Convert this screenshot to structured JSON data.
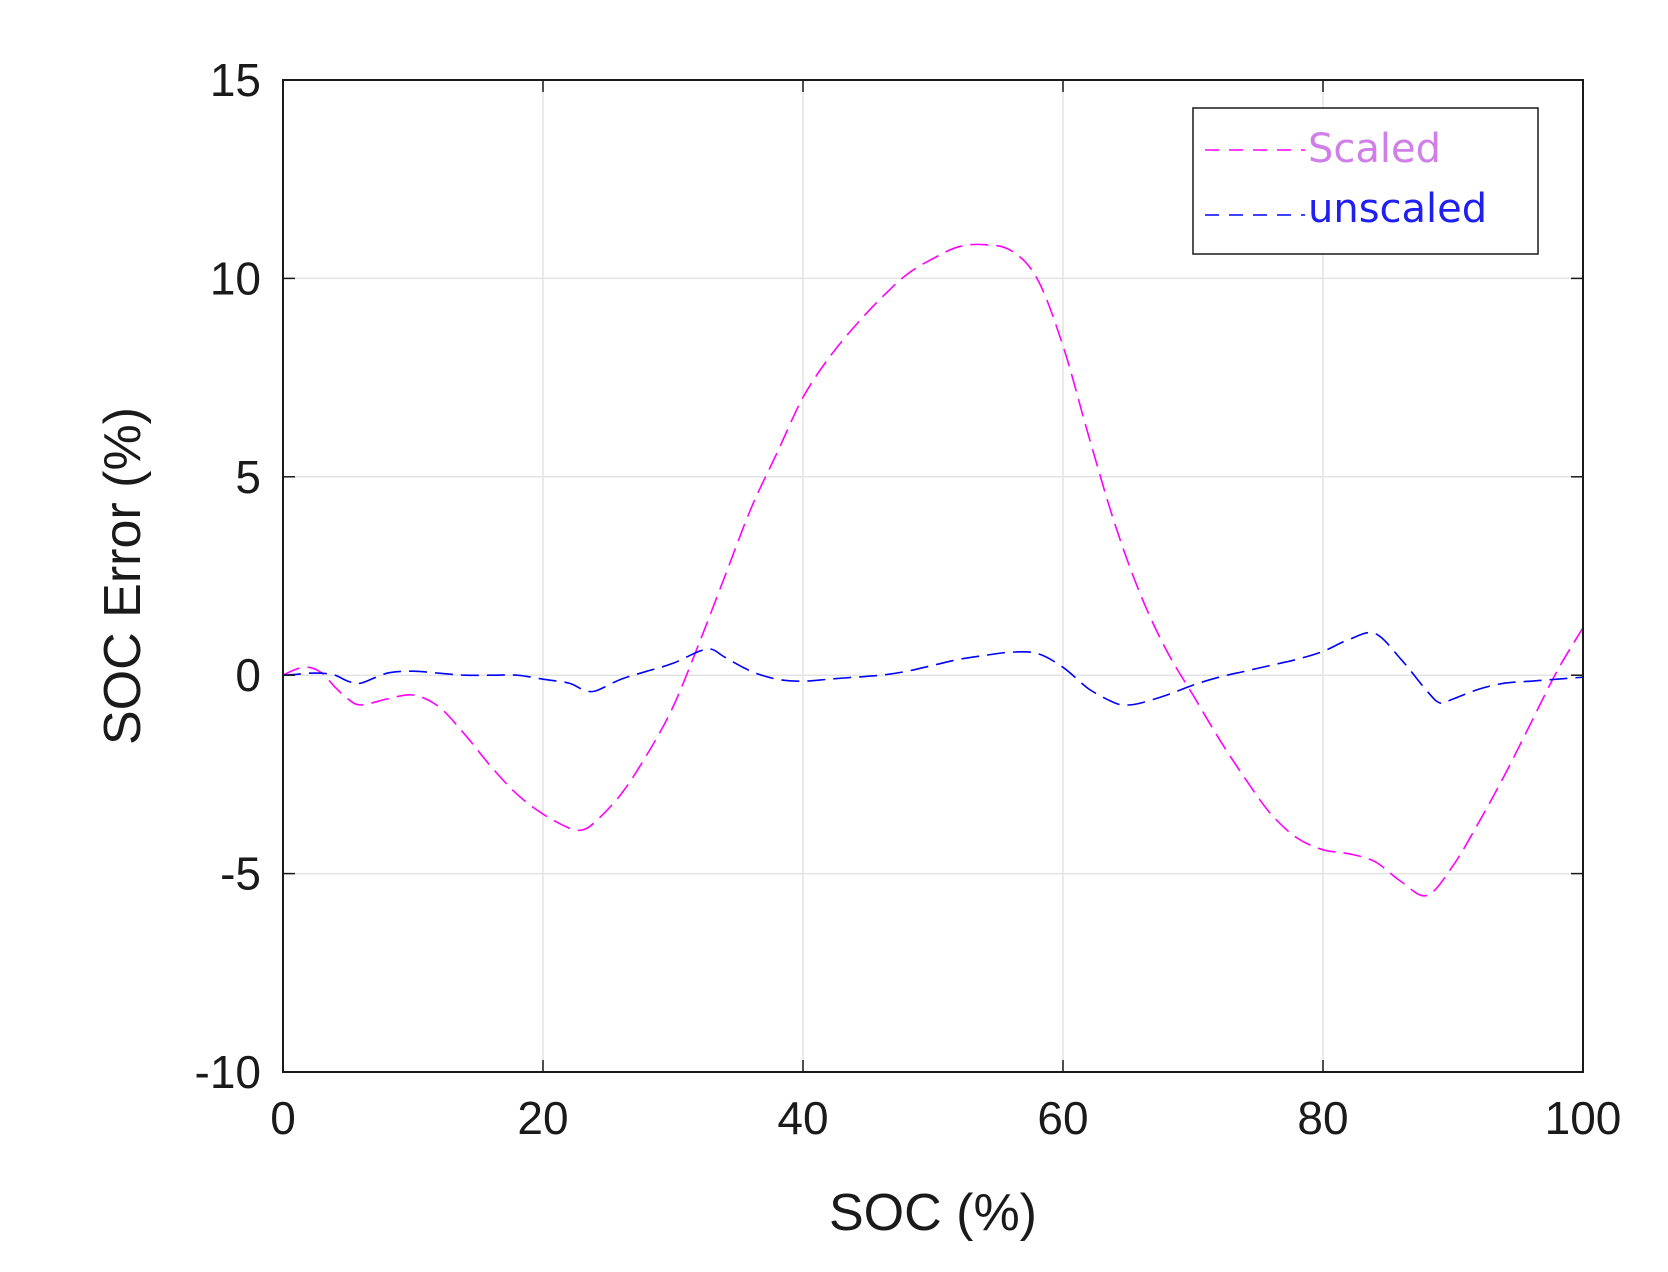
{
  "chart_data": {
    "type": "line",
    "title": "",
    "xlabel": "SOC (%)",
    "ylabel": "SOC Error (%)",
    "xlim": [
      0,
      100
    ],
    "ylim": [
      -10,
      15
    ],
    "xticks": [
      0,
      20,
      40,
      60,
      80,
      100
    ],
    "yticks": [
      -10,
      -5,
      0,
      5,
      10,
      15
    ],
    "xtick_labels": [
      "0",
      "20",
      "40",
      "60",
      "80",
      "100"
    ],
    "ytick_labels": [
      "-10",
      "-5",
      "0",
      "5",
      "10",
      "15"
    ],
    "grid": true,
    "legend_position": "top-right",
    "series": [
      {
        "name": "Scaled",
        "color": "#ff00ff",
        "legend_text_color": "#d07ee8",
        "line_style": "dashed",
        "x": [
          0,
          1,
          2,
          3,
          4,
          5,
          6,
          8,
          10,
          12,
          14,
          16,
          18,
          20,
          22,
          23,
          24,
          26,
          28,
          30,
          32,
          34,
          36,
          38,
          40,
          42,
          44,
          46,
          48,
          50,
          52,
          54,
          56,
          58,
          60,
          62,
          64,
          66,
          68,
          70,
          72,
          74,
          76,
          78,
          80,
          82,
          84,
          86,
          88,
          90,
          92,
          94,
          96,
          98,
          100
        ],
        "y": [
          0,
          0.15,
          0.2,
          0.05,
          -0.3,
          -0.6,
          -0.75,
          -0.6,
          -0.5,
          -0.8,
          -1.5,
          -2.3,
          -3.0,
          -3.5,
          -3.85,
          -3.9,
          -3.7,
          -3.0,
          -2.0,
          -0.8,
          0.8,
          2.5,
          4.2,
          5.6,
          7.0,
          8.0,
          8.8,
          9.5,
          10.1,
          10.5,
          10.8,
          10.85,
          10.7,
          10.0,
          8.3,
          6.0,
          3.8,
          2.0,
          0.6,
          -0.5,
          -1.6,
          -2.6,
          -3.5,
          -4.1,
          -4.4,
          -4.5,
          -4.7,
          -5.2,
          -5.55,
          -4.8,
          -3.7,
          -2.5,
          -1.2,
          0.1,
          1.2
        ]
      },
      {
        "name": "unscaled",
        "color": "#0000ff",
        "legend_text_color": "#1f1ff2",
        "line_style": "dashed",
        "x": [
          0,
          1,
          2,
          3,
          4,
          5,
          6,
          8,
          10,
          12,
          14,
          16,
          18,
          20,
          22,
          23,
          24,
          26,
          28,
          30,
          32,
          33,
          34,
          36,
          38,
          40,
          42,
          44,
          46,
          48,
          50,
          52,
          54,
          56,
          58,
          60,
          62,
          64,
          65,
          66,
          68,
          70,
          72,
          74,
          76,
          78,
          80,
          82,
          84,
          86,
          88,
          89,
          90,
          92,
          94,
          96,
          98,
          100
        ],
        "y": [
          0,
          0.02,
          0.05,
          0.05,
          0.0,
          -0.15,
          -0.2,
          0.05,
          0.1,
          0.05,
          0.0,
          0.0,
          0.0,
          -0.1,
          -0.2,
          -0.35,
          -0.4,
          -0.1,
          0.1,
          0.3,
          0.6,
          0.65,
          0.45,
          0.1,
          -0.1,
          -0.15,
          -0.1,
          -0.05,
          0.0,
          0.1,
          0.25,
          0.4,
          0.5,
          0.58,
          0.55,
          0.2,
          -0.35,
          -0.7,
          -0.75,
          -0.7,
          -0.5,
          -0.25,
          -0.05,
          0.1,
          0.25,
          0.4,
          0.6,
          0.9,
          1.05,
          0.4,
          -0.4,
          -0.7,
          -0.6,
          -0.35,
          -0.2,
          -0.15,
          -0.1,
          -0.05
        ]
      }
    ]
  }
}
